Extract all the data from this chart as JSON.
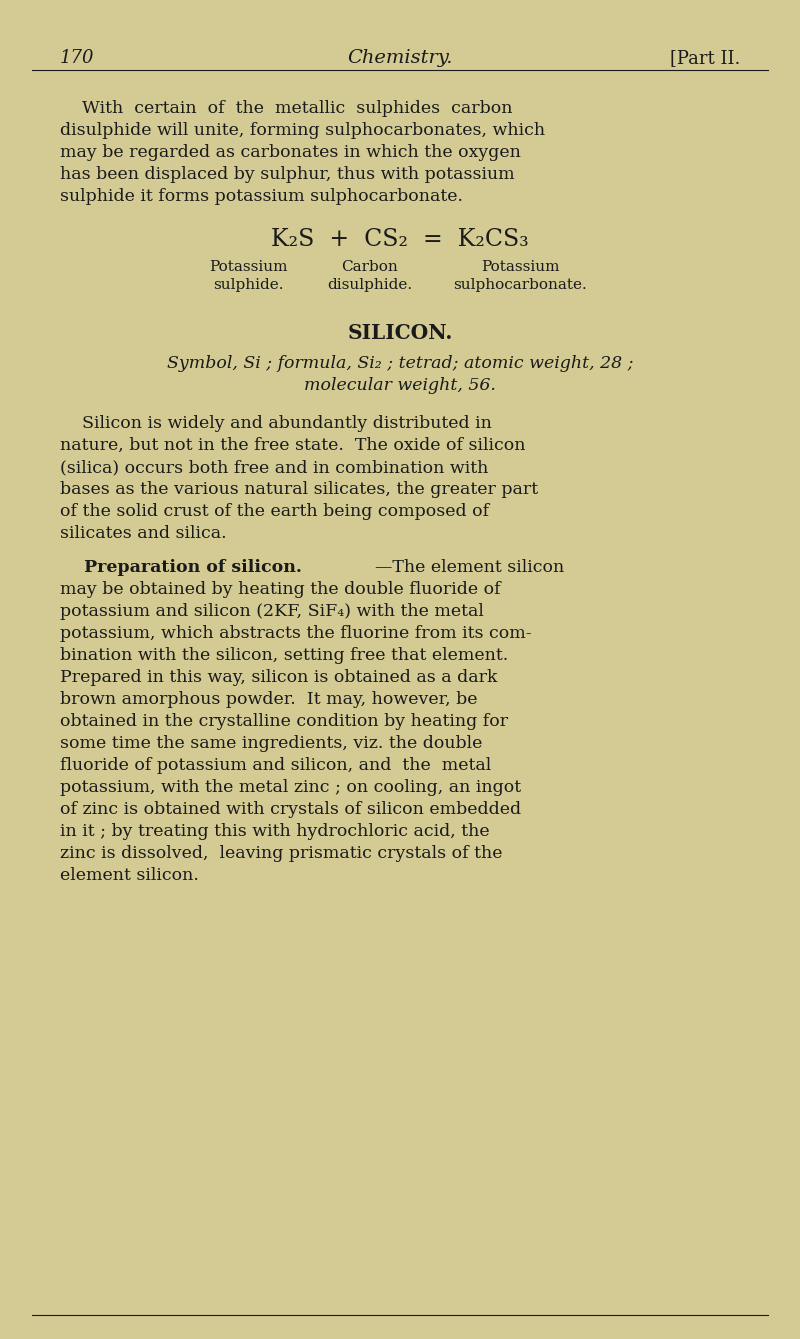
{
  "bg_color": "#d4cb94",
  "text_color": "#1a1a1a",
  "page_number": "170",
  "header_center": "Chemistry.",
  "header_right": "[Part II.",
  "body_lines": [
    "    With  certain  of  the  metallic  sulphides  carbon",
    "disulphide will unite, forming sulphocarbonates, which",
    "may be regarded as carbonates in which the oxygen",
    "has been displaced by sulphur, thus with potassium",
    "sulphide it forms potassium sulphocarbonate."
  ],
  "equation_line": "K₂S  +  CS₂  =  K₂CS₃",
  "label1": "Potassium",
  "label2": "Carbon",
  "label3": "Potassium",
  "label1b": "sulphide.",
  "label2b": "disulphide.",
  "label3b": "sulphocarbonate.",
  "section_title": "SILICON.",
  "section_subtitle": "Symbol, Si ; formula, Si₂ ; tetrad; atomic weight, 28 ;",
  "section_subtitle2": "molecular weight, 56.",
  "body2_lines": [
    "    Silicon is widely and abundantly distributed in",
    "nature, but not in the free state.  The oxide of silicon",
    "(silica) occurs both free and in combination with",
    "bases as the various natural silicates, the greater part",
    "of the solid crust of the earth being composed of",
    "silicates and silica."
  ],
  "prep_bold": "Preparation of silicon.",
  "prep_rest": "—The element silicon",
  "prep_lines": [
    "may be obtained by heating the double fluoride of",
    "potassium and silicon (2KF, SiF₄) with the metal",
    "potassium, which abstracts the fluorine from its com-",
    "bination with the silicon, setting free that element.",
    "Prepared in this way, silicon is obtained as a dark",
    "brown amorphous powder.  It may, however, be",
    "obtained in the crystalline condition by heating for",
    "some time the same ingredients, viz. the double",
    "fluoride of potassium and silicon, and  the  metal",
    "potassium, with the metal zinc ; on cooling, an ingot",
    "of zinc is obtained with crystals of silicon embedded",
    "in it ; by treating this with hydrochloric acid, the",
    "zinc is dissolved,  leaving prismatic crystals of the",
    "element silicon."
  ]
}
